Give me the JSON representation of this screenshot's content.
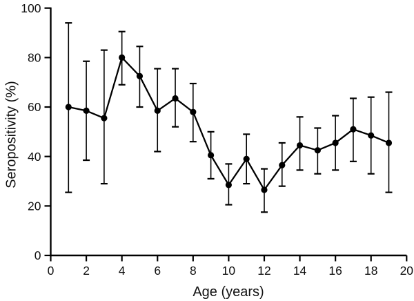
{
  "figure": {
    "background": "#ffffff"
  },
  "chart_data": {
    "type": "line",
    "title": "",
    "xlabel": "Age (years)",
    "ylabel": "Seropositivity (%)",
    "x": [
      1,
      2,
      3,
      4,
      5,
      6,
      7,
      8,
      9,
      10,
      11,
      12,
      13,
      14,
      15,
      16,
      17,
      18,
      19
    ],
    "series": [
      {
        "name": "Seropositivity",
        "values": [
          60,
          58.5,
          55.5,
          80,
          72.5,
          58.5,
          63.5,
          58,
          40.5,
          28.5,
          39,
          26.5,
          36.5,
          44.5,
          42.5,
          45.5,
          51,
          48.5,
          45.5
        ],
        "ci_low": [
          25.5,
          38.5,
          29,
          69,
          60,
          42,
          52,
          46,
          31,
          20.5,
          29,
          17.5,
          28,
          34.5,
          33,
          34.5,
          38,
          33,
          25.5
        ],
        "ci_high": [
          94,
          78.5,
          83,
          90.5,
          84.5,
          75.5,
          75.5,
          69.5,
          50,
          37,
          49,
          35,
          45.5,
          56,
          51.5,
          56.5,
          63.5,
          64,
          66
        ]
      }
    ],
    "xlim": [
      0,
      20
    ],
    "ylim": [
      0,
      100
    ],
    "xticks": [
      0,
      2,
      4,
      6,
      8,
      10,
      12,
      14,
      16,
      18,
      20
    ],
    "yticks": [
      0,
      20,
      40,
      60,
      80,
      100
    ],
    "grid": false,
    "legend": false,
    "marker": "circle",
    "error_bars": true,
    "colors": {
      "line": "#000000",
      "marker": "#000000",
      "error": "#000000",
      "axis": "#000000",
      "text": "#111111"
    }
  }
}
